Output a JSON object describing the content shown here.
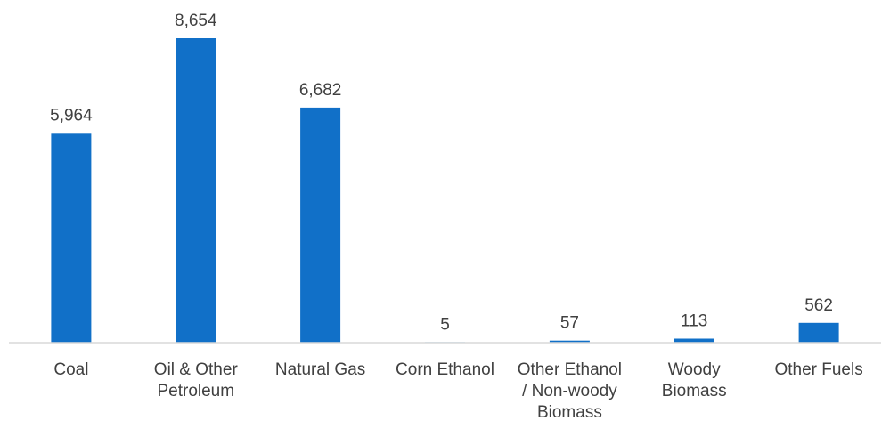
{
  "chart_data": {
    "type": "bar",
    "title": "",
    "xlabel": "",
    "ylabel": "",
    "categories": [
      "Coal",
      "Oil & Other Petroleum",
      "Natural Gas",
      "Corn Ethanol",
      "Other Ethanol / Non-woody Biomass",
      "Woody Biomass",
      "Other Fuels"
    ],
    "category_label_lines": [
      [
        "Coal"
      ],
      [
        "Oil & Other",
        "Petroleum"
      ],
      [
        "Natural Gas"
      ],
      [
        "Corn Ethanol"
      ],
      [
        "Other Ethanol",
        "/ Non-woody",
        "Biomass"
      ],
      [
        "Woody",
        "Biomass"
      ],
      [
        "Other Fuels"
      ]
    ],
    "values": [
      5964,
      8654,
      6682,
      5,
      57,
      113,
      562
    ],
    "data_labels": [
      "5,964",
      "8,654",
      "6,682",
      "5",
      "57",
      "113",
      "562"
    ],
    "ylim": [
      0,
      8654
    ],
    "grid": false,
    "legend": "none",
    "bar_color": "#1170C8",
    "axis_color": "#D9D9D9",
    "text_color": "#404040"
  }
}
